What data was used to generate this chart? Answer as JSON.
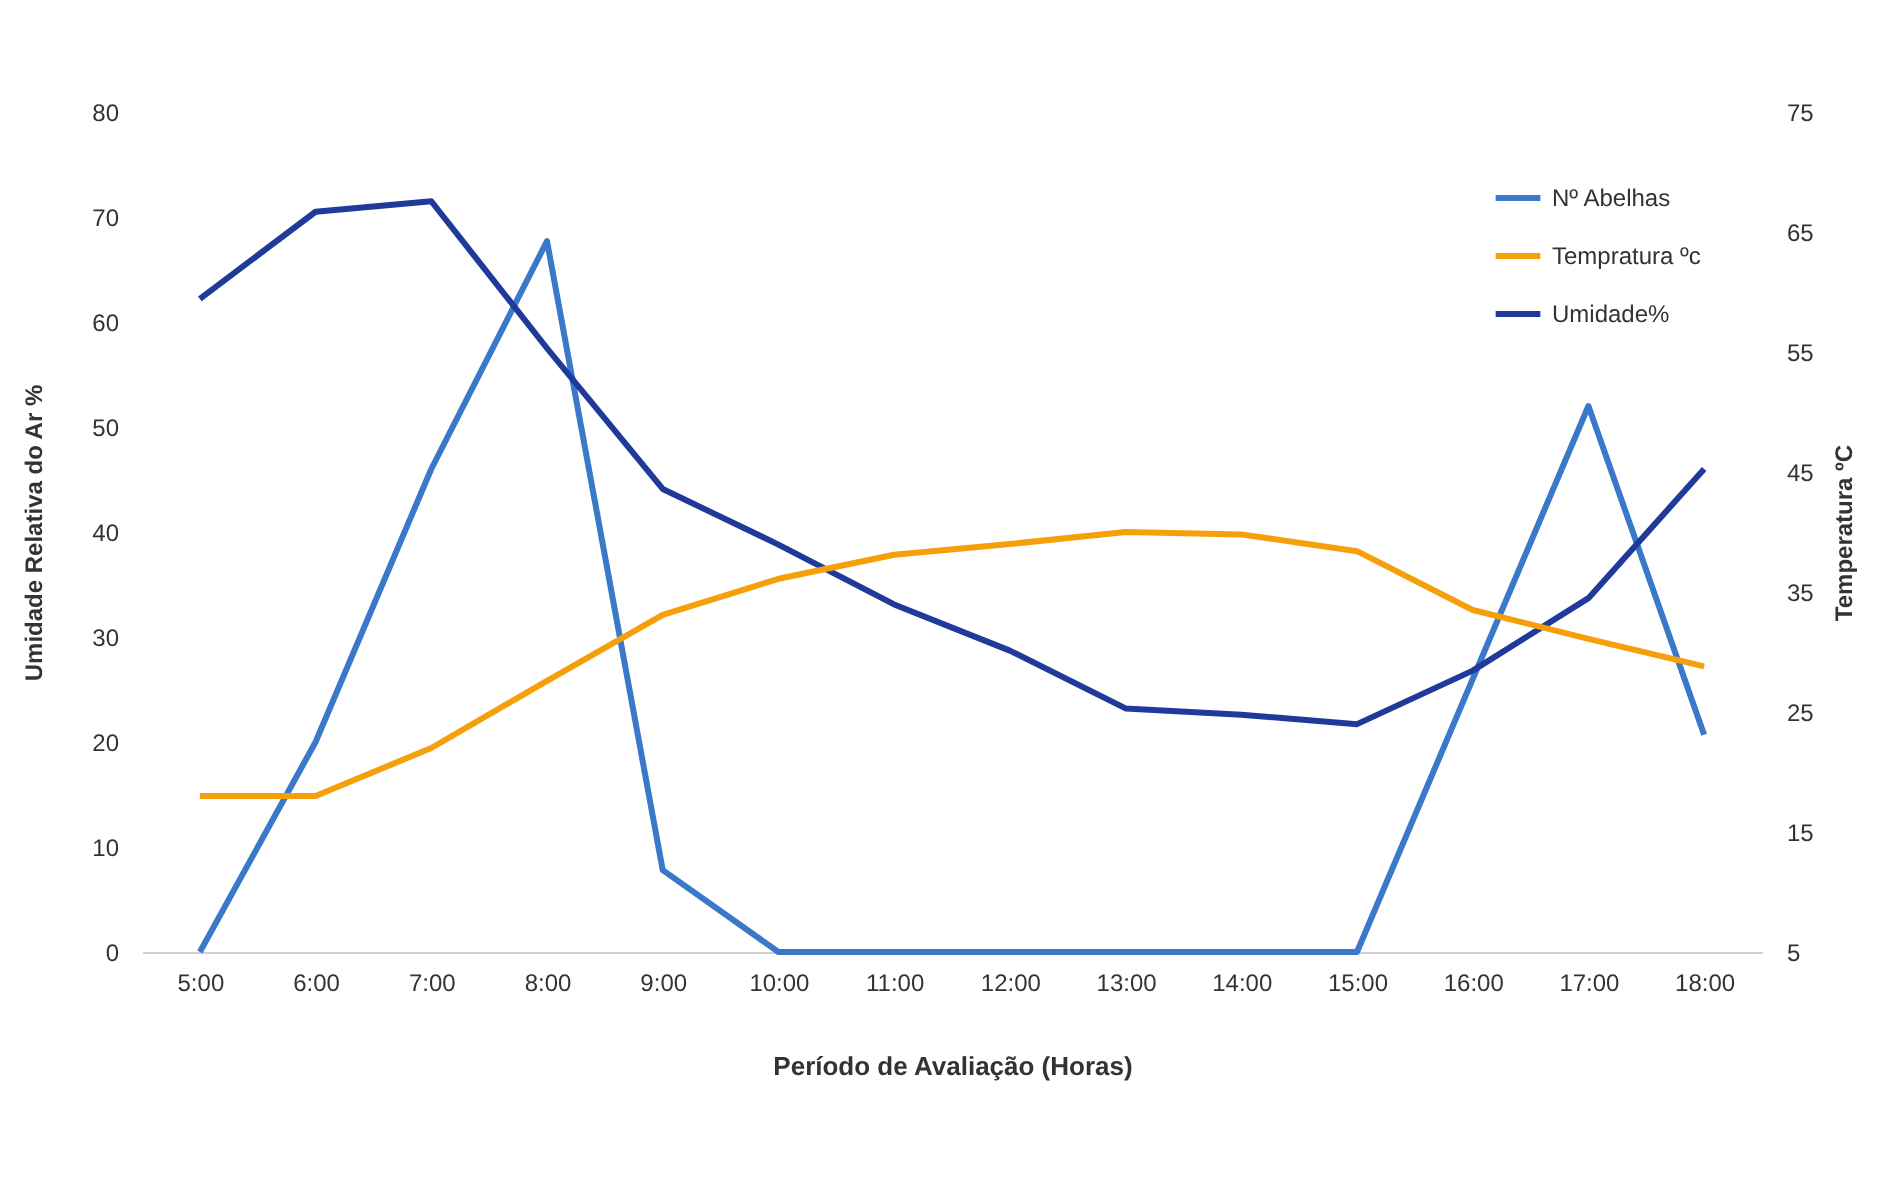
{
  "chart_data": {
    "type": "line",
    "xlabel": "Período de Avaliação (Horas)",
    "ylabel": "Umidade Relativa do Ar %",
    "y2label": "Temperatura ºC",
    "categories": [
      "5:00",
      "6:00",
      "7:00",
      "8:00",
      "9:00",
      "10:00",
      "11:00",
      "12:00",
      "13:00",
      "14:00",
      "15:00",
      "16:00",
      "17:00",
      "18:00"
    ],
    "series": [
      {
        "name": "Nº Abelhas",
        "color": "#3a78c9",
        "values": [
          0,
          20,
          46,
          67.7,
          7.8,
          0,
          0,
          0,
          0,
          0,
          0,
          26,
          52,
          20.7
        ]
      },
      {
        "name": "Tempratura ºc",
        "color": "#f5a00a",
        "axis": "y2",
        "values": [
          18,
          18,
          22,
          27.6,
          33.1,
          36.1,
          38.1,
          39,
          40,
          39.8,
          38.4,
          33.5,
          31.1,
          28.8
        ]
      },
      {
        "name": "Umidade%",
        "color": "#1f3a9a",
        "values": [
          62.2,
          70.5,
          71.5,
          57.5,
          44.1,
          38.8,
          33.1,
          28.7,
          23.2,
          22.6,
          21.7,
          26.8,
          33.7,
          46
        ]
      }
    ],
    "ylim": [
      0,
      80
    ],
    "yticks": [
      0,
      10,
      20,
      30,
      40,
      50,
      60,
      70,
      80
    ],
    "y2lim": [
      5,
      75
    ],
    "y2ticks": [
      5,
      15,
      25,
      35,
      45,
      55,
      65,
      75
    ],
    "legend": "top right",
    "grid": false,
    "marker": "none",
    "line_style": "solid"
  }
}
